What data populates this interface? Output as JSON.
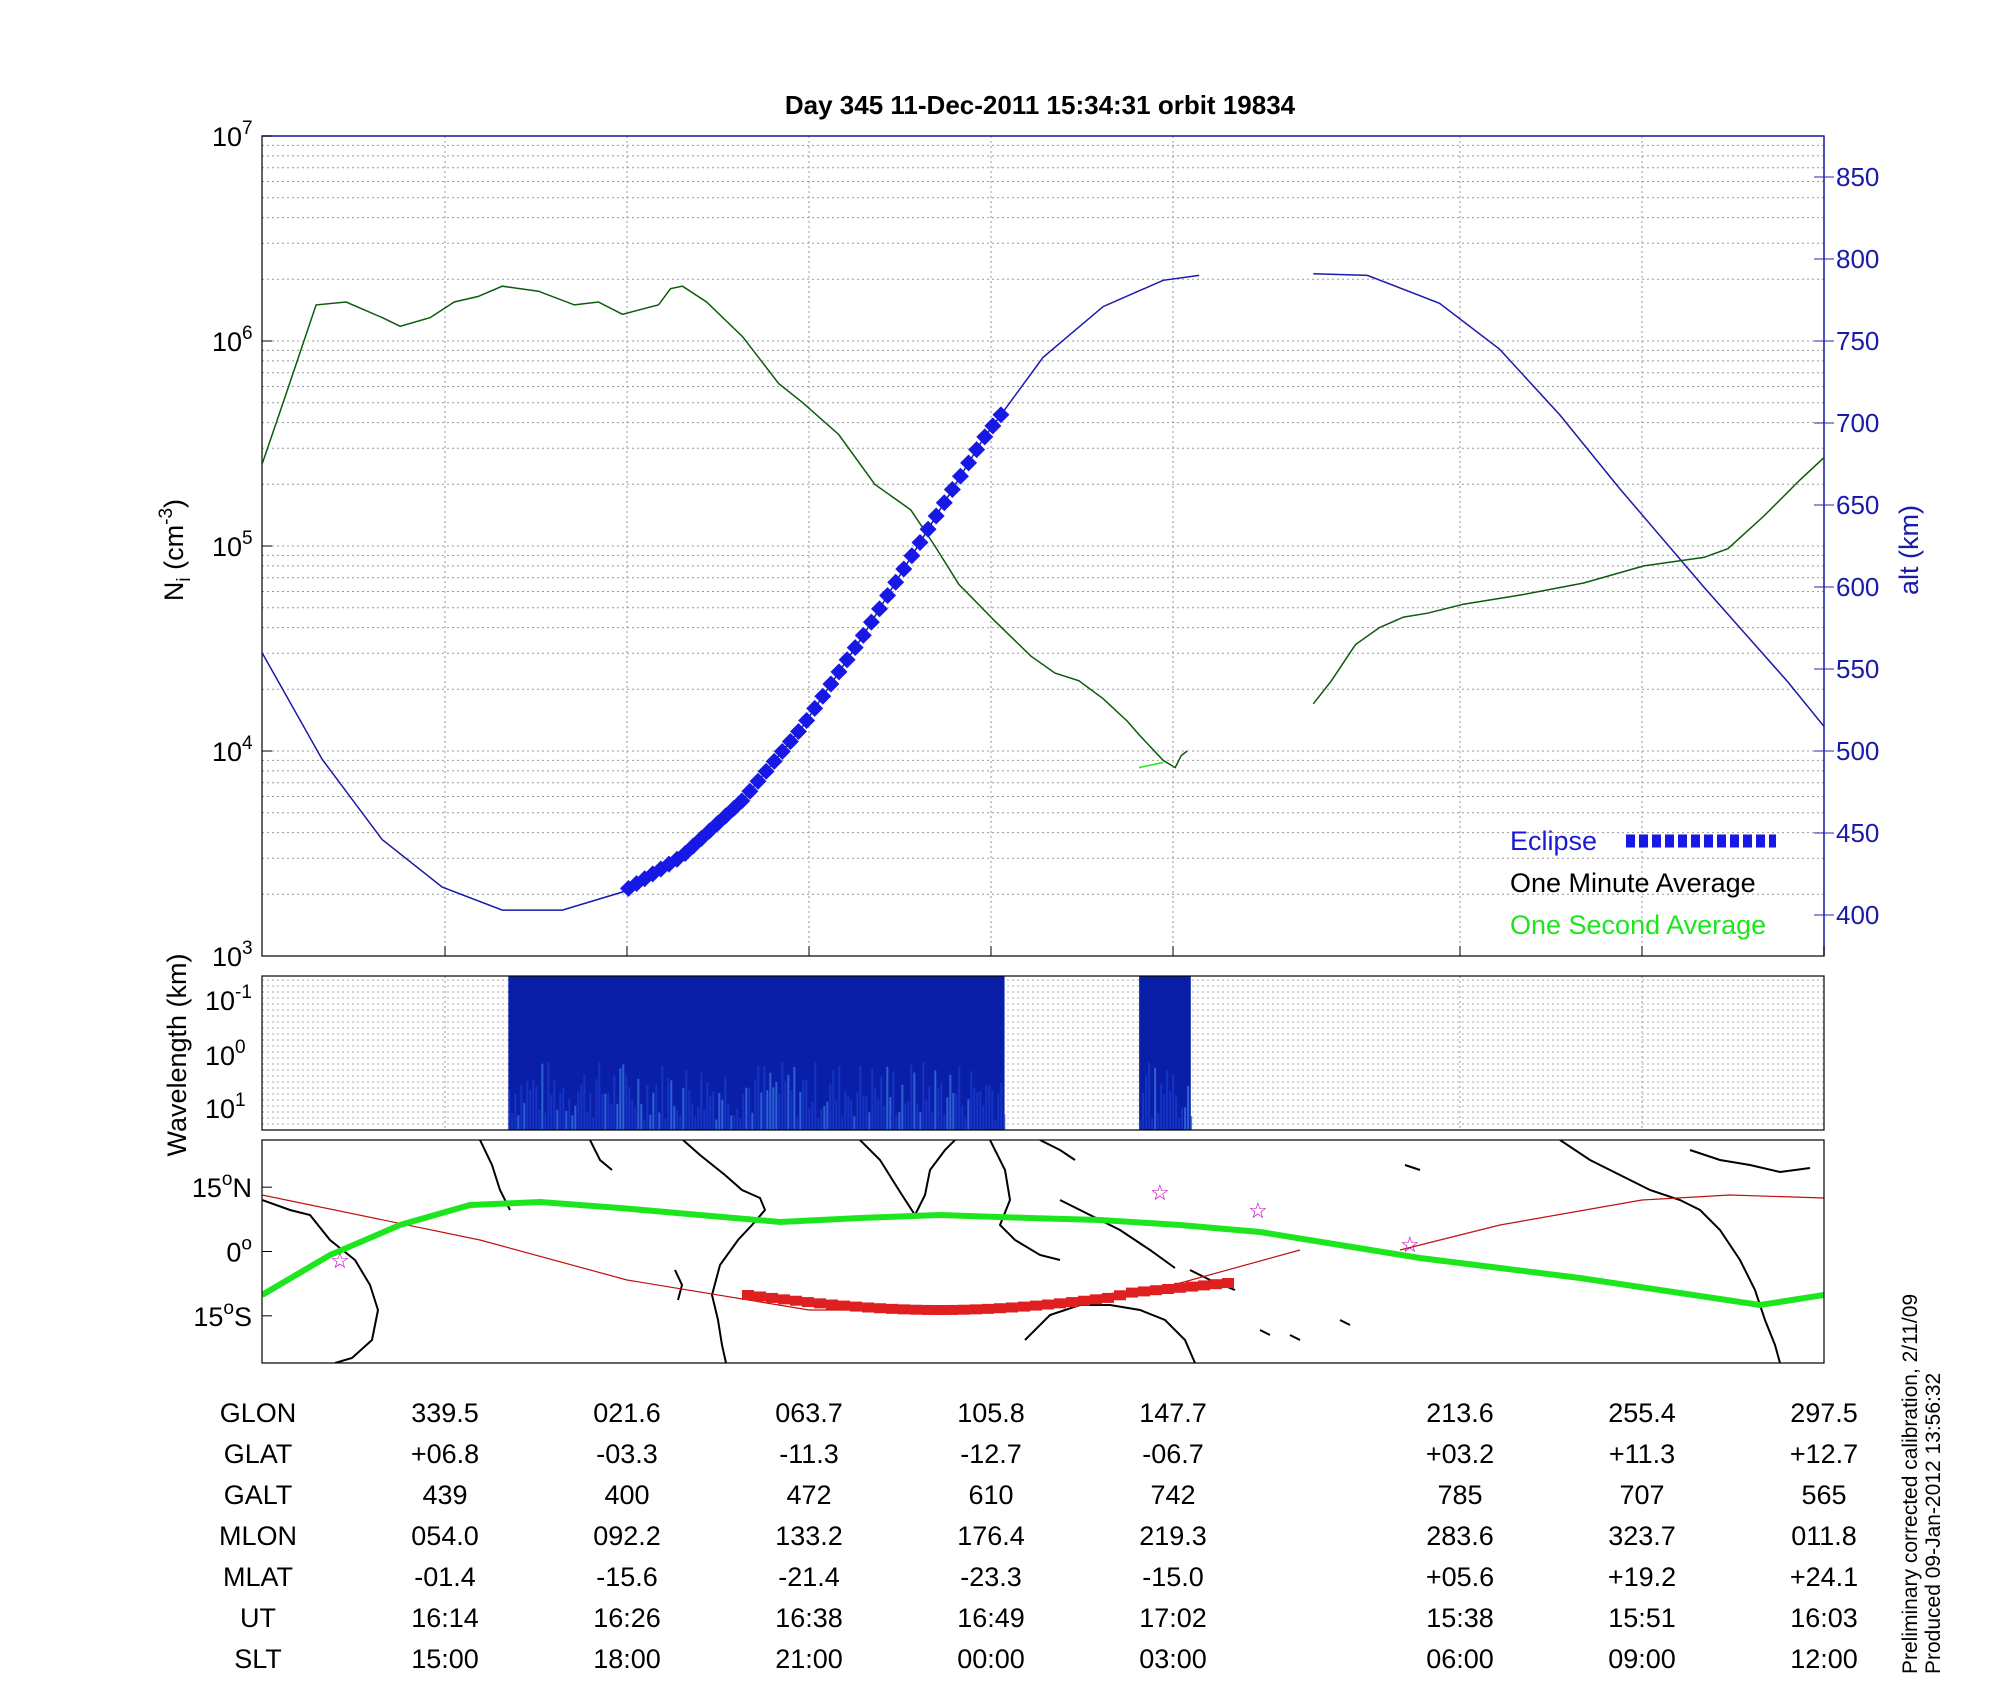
{
  "title": "Day 345  11-Dec-2011 15:34:31   orbit 19834",
  "main_panel": {
    "ylabel_left_base": "N",
    "ylabel_left_sub": "i",
    "ylabel_left_unit": " (cm",
    "ylabel_left_exp": "-3",
    "ylabel_left_close": ")",
    "ylabel_right": "alt (km)",
    "left_ticks": [
      {
        "base": "10",
        "exp": "3",
        "log": 3
      },
      {
        "base": "10",
        "exp": "4",
        "log": 4
      },
      {
        "base": "10",
        "exp": "5",
        "log": 5
      },
      {
        "base": "10",
        "exp": "6",
        "log": 6
      },
      {
        "base": "10",
        "exp": "7",
        "log": 7
      }
    ],
    "right_ticks": [
      "400",
      "450",
      "500",
      "550",
      "600",
      "650",
      "700",
      "750",
      "800",
      "850"
    ],
    "right_range": [
      375,
      875
    ],
    "legend": {
      "eclipse": "Eclipse",
      "minute": "One Minute Average",
      "second": "One Second Average",
      "colors": {
        "eclipse": "#1717e6",
        "minute": "#000000",
        "second": "#1ee61e"
      }
    }
  },
  "chart_data": {
    "type": "line",
    "x_description": "orbit fraction (0 = left edge, 1 = right edge)",
    "x_range": [
      0,
      1
    ],
    "y_left_scale": "log",
    "y_left_range": [
      1000,
      10000000
    ],
    "y_right_range": [
      375,
      875
    ],
    "grid": true,
    "density_segments": [
      [
        [
          0.0,
          250000
        ],
        [
          0.02,
          550000
        ],
        [
          0.045,
          1500000
        ],
        [
          0.07,
          1550000
        ],
        [
          0.1,
          1300000
        ],
        [
          0.115,
          1180000
        ],
        [
          0.14,
          1300000
        ],
        [
          0.16,
          1550000
        ],
        [
          0.18,
          1650000
        ],
        [
          0.2,
          1850000
        ],
        [
          0.23,
          1750000
        ],
        [
          0.26,
          1500000
        ],
        [
          0.28,
          1550000
        ],
        [
          0.3,
          1350000
        ],
        [
          0.33,
          1500000
        ],
        [
          0.34,
          1800000
        ],
        [
          0.35,
          1850000
        ],
        [
          0.37,
          1550000
        ],
        [
          0.4,
          1050000
        ],
        [
          0.43,
          620000
        ],
        [
          0.45,
          500000
        ],
        [
          0.48,
          350000
        ],
        [
          0.51,
          200000
        ],
        [
          0.54,
          150000
        ],
        [
          0.56,
          100000
        ],
        [
          0.58,
          65000
        ],
        [
          0.61,
          43000
        ],
        [
          0.64,
          29000
        ],
        [
          0.66,
          24000
        ],
        [
          0.68,
          22000
        ],
        [
          0.7,
          18000
        ],
        [
          0.72,
          14000
        ],
        [
          0.73,
          12000
        ],
        [
          0.75,
          9000
        ],
        [
          0.76,
          8300
        ],
        [
          0.765,
          9500
        ],
        [
          0.77,
          10000
        ]
      ],
      [
        [
          0.73,
          8300
        ],
        [
          0.75,
          8800
        ]
      ],
      [
        [
          0.875,
          17000
        ],
        [
          0.89,
          22000
        ],
        [
          0.91,
          33000
        ],
        [
          0.93,
          40000
        ],
        [
          0.95,
          45000
        ],
        [
          0.97,
          47000
        ],
        [
          1.0,
          52000
        ],
        [
          1.05,
          58000
        ],
        [
          1.1,
          66000
        ],
        [
          1.15,
          80000
        ],
        [
          1.2,
          88000
        ],
        [
          1.22,
          97000
        ],
        [
          1.25,
          140000
        ],
        [
          1.28,
          210000
        ],
        [
          1.3,
          270000
        ]
      ]
    ],
    "altitude_segments": [
      [
        [
          0.0,
          560
        ],
        [
          0.05,
          495
        ],
        [
          0.1,
          446
        ],
        [
          0.15,
          417
        ],
        [
          0.2,
          403
        ],
        [
          0.25,
          403
        ],
        [
          0.3,
          414
        ],
        [
          0.35,
          436
        ],
        [
          0.4,
          470
        ],
        [
          0.45,
          515
        ],
        [
          0.5,
          570
        ],
        [
          0.55,
          630
        ],
        [
          0.6,
          690
        ],
        [
          0.65,
          740
        ],
        [
          0.7,
          771
        ],
        [
          0.75,
          787
        ],
        [
          0.78,
          790
        ]
      ],
      [
        [
          0.875,
          791
        ],
        [
          0.92,
          790
        ],
        [
          0.98,
          773
        ],
        [
          1.03,
          745
        ],
        [
          1.08,
          705
        ],
        [
          1.13,
          660
        ],
        [
          1.2,
          600
        ],
        [
          1.27,
          542
        ],
        [
          1.3,
          515
        ]
      ]
    ],
    "eclipse_range": [
      0.305,
      0.615
    ],
    "spectrogram": {
      "ylabel": "Wavelength (km)",
      "ticks": [
        {
          "base": "10",
          "exp": "-1"
        },
        {
          "base": "10",
          "exp": "0"
        },
        {
          "base": "10",
          "exp": "1"
        }
      ],
      "blocks": [
        [
          0.205,
          0.618
        ],
        [
          0.73,
          0.773
        ]
      ]
    },
    "map": {
      "lat_ticks": [
        {
          "label": "15",
          "hemi": "N",
          "lat": 15
        },
        {
          "label": "0",
          "hemi": "",
          "lat": 0
        },
        {
          "label": "15",
          "hemi": "S",
          "lat": -15
        }
      ],
      "lat_range": [
        -26,
        26
      ]
    }
  },
  "table": {
    "row_labels": [
      "GLON",
      "GLAT",
      "GALT",
      "MLON",
      "MLAT",
      "UT",
      "SLT"
    ],
    "columns": [
      [
        "339.5",
        "+06.8",
        "439",
        "054.0",
        "-01.4",
        "16:14",
        "15:00"
      ],
      [
        "021.6",
        "-03.3",
        "400",
        "092.2",
        "-15.6",
        "16:26",
        "18:00"
      ],
      [
        "063.7",
        "-11.3",
        "472",
        "133.2",
        "-21.4",
        "16:38",
        "21:00"
      ],
      [
        "105.8",
        "-12.7",
        "610",
        "176.4",
        "-23.3",
        "16:49",
        "00:00"
      ],
      [
        "147.7",
        "-06.7",
        "742",
        "219.3",
        "-15.0",
        "17:02",
        "03:00"
      ],
      [
        "213.6",
        "+03.2",
        "785",
        "283.6",
        "+05.6",
        "15:38",
        "06:00"
      ],
      [
        "255.4",
        "+11.3",
        "707",
        "323.7",
        "+19.2",
        "15:51",
        "09:00"
      ],
      [
        "297.5",
        "+12.7",
        "565",
        "011.8",
        "+24.1",
        "16:03",
        "12:00"
      ]
    ]
  },
  "footer": {
    "line1": "Preliminary corrected calibration, 2/11/09",
    "line2": "Produced 09-Jan-2012 13:56:32"
  }
}
